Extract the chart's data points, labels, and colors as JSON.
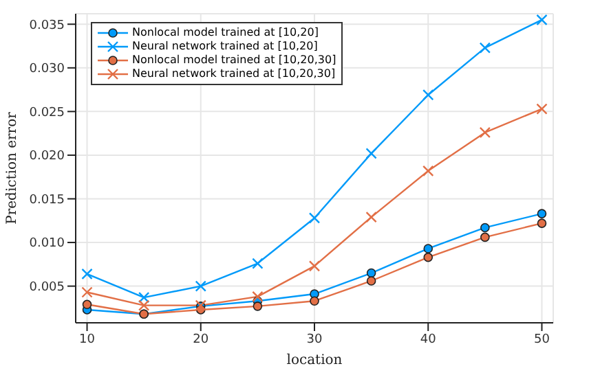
{
  "chart_data": {
    "type": "line",
    "xlabel": "location",
    "ylabel": "Prediction error",
    "x": [
      10,
      15,
      20,
      25,
      30,
      35,
      40,
      45,
      50
    ],
    "xlim": [
      9,
      51
    ],
    "xticks": [
      10,
      20,
      30,
      40,
      50
    ],
    "ylim": [
      0.0008,
      0.0362
    ],
    "yticks": [
      0.005,
      {
        "value": 0.01,
        "label": "0.010"
      },
      0.015,
      {
        "value": 0.02,
        "label": "0.020"
      },
      0.025,
      {
        "value": 0.03,
        "label": "0.030"
      },
      0.035
    ],
    "grid": true,
    "legend": "top left",
    "line_style": "solid",
    "series": [
      {
        "name": "Nonlocal model trained at [10,20]",
        "color": "#009af9",
        "marker": "circle",
        "values": [
          0.0023,
          0.0018,
          0.0027,
          0.0033,
          0.0041,
          0.0065,
          0.0093,
          0.0117,
          0.0133
        ]
      },
      {
        "name": "Neural network trained at [10,20]",
        "color": "#009af9",
        "marker": "cross",
        "values": [
          0.0064,
          0.0037,
          0.005,
          0.0076,
          0.0128,
          0.0202,
          0.0269,
          0.0323,
          0.0355
        ]
      },
      {
        "name": "Nonlocal model trained at [10,20,30]",
        "color": "#e26f46",
        "marker": "circle",
        "values": [
          0.0029,
          0.0018,
          0.0023,
          0.0027,
          0.0033,
          0.0056,
          0.0083,
          0.0106,
          0.0122
        ]
      },
      {
        "name": "Neural network trained at [10,20,30]",
        "color": "#e26f46",
        "marker": "cross",
        "values": [
          0.0043,
          0.0028,
          0.0028,
          0.0038,
          0.0073,
          0.0129,
          0.0182,
          0.0226,
          0.0253
        ]
      }
    ]
  }
}
